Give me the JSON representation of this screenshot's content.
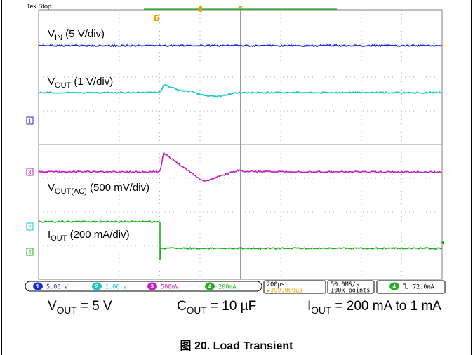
{
  "chart_data": {
    "type": "line",
    "title": "Load Transient",
    "figure_label": "图 20. Load Transient",
    "scope_status": "Tek Stop",
    "time_axis": {
      "divisions": 10,
      "time_per_div": "200µs",
      "trigger_offset": "399.000µs"
    },
    "series": [
      {
        "name": "VIN",
        "label_main": "V",
        "label_sub": "IN",
        "label_rest": " (5 V/div)",
        "color": "#1f2bd6",
        "channel_marker": "1"
      },
      {
        "name": "VOUT",
        "label_main": "V",
        "label_sub": "OUT",
        "label_rest": " (1 V/div)",
        "color": "#19c7c7",
        "channel_marker": "2"
      },
      {
        "name": "VOUT(AC)",
        "label_main": "V",
        "label_sub": "OUT(AC)",
        "label_rest": " (500 mV/div)",
        "color": "#c21fbf",
        "channel_marker": "3"
      },
      {
        "name": "IOUT",
        "label_main": "I",
        "label_sub": "OUT",
        "label_rest": " (200 mA/div)",
        "color": "#22b022",
        "channel_marker": "4"
      }
    ],
    "readouts": {
      "ch1": "5.00 V",
      "ch2": "1.00 V",
      "ch3": "500mV",
      "ch4": "200mA",
      "horizontal": "200µs",
      "trigger_pos": "▶399.000µs",
      "sample_rate": "50.0MS/s",
      "record_length": "100k points",
      "trigger_level": "72.0mA"
    }
  },
  "conditions": [
    {
      "main": "V",
      "sub": "OUT",
      "rest": " = 5 V"
    },
    {
      "main": "C",
      "sub": "OUT",
      "rest": " = 10 µF"
    },
    {
      "main": "I",
      "sub": "OUT",
      "rest": " = 200 mA to 1 mA"
    }
  ],
  "colors": {
    "grid": "#b0b0b0",
    "frame": "#808080",
    "trigger": "#f0a000"
  }
}
